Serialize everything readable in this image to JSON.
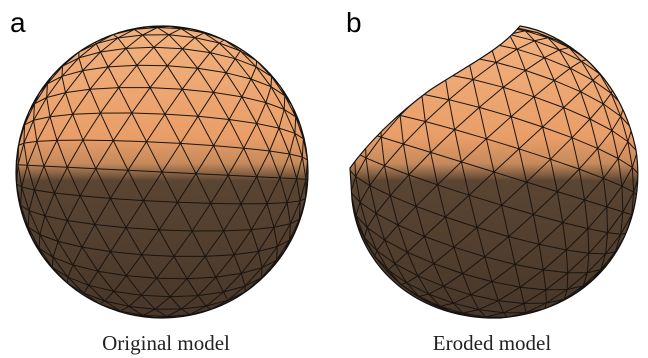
{
  "panels": [
    {
      "label": "a",
      "caption": "Original model"
    },
    {
      "label": "b",
      "caption": "Eroded model"
    }
  ]
}
